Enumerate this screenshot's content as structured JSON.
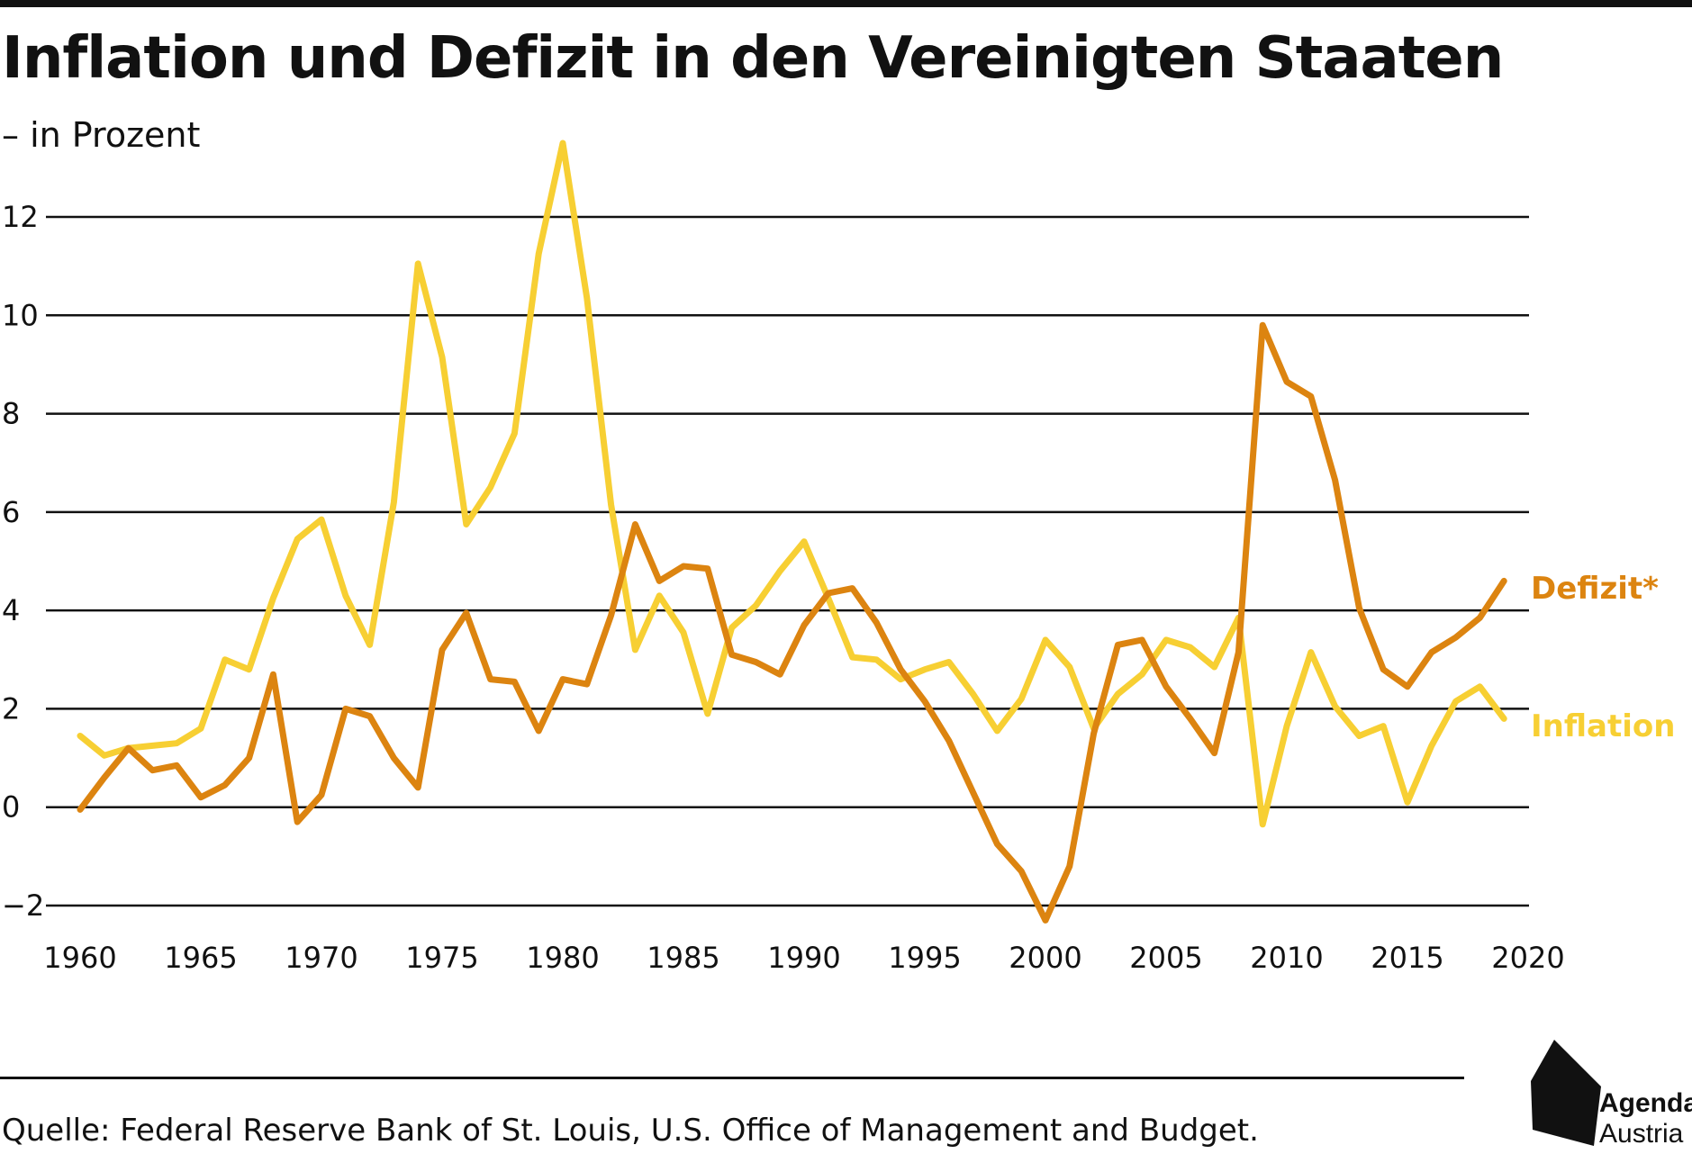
{
  "title": "Inflation und Defizit in den Vereinigten Staaten",
  "subtitle": "– in Prozent",
  "source": "Quelle: Federal Reserve Bank of St. Louis, U.S. Office of Management and Budget.",
  "logo": {
    "line1": "Agenda",
    "line2": "Austria"
  },
  "colors": {
    "inflation": "#f7cf33",
    "defizit": "#dc8410",
    "grid": "#111111",
    "text": "#111111"
  },
  "chart_data": {
    "type": "line",
    "title": "Inflation und Defizit in den Vereinigten Staaten",
    "ylabel": "in Prozent",
    "xlabel": "",
    "xlim": [
      1960,
      2020
    ],
    "ylim": [
      -2,
      12
    ],
    "x_ticks": [
      1960,
      1965,
      1970,
      1975,
      1980,
      1985,
      1990,
      1995,
      2000,
      2005,
      2010,
      2015,
      2020
    ],
    "x_tick_labels": [
      "1960",
      "1965",
      "1970",
      "1975",
      "1980",
      "1985",
      "1990",
      "1995",
      "2000",
      "2005",
      "2010",
      "2015",
      "2020"
    ],
    "y_ticks": [
      -2,
      0,
      2,
      4,
      6,
      8,
      10,
      12
    ],
    "y_tick_labels": [
      "−2",
      "0",
      "2",
      "4",
      "6",
      "8",
      "10",
      "12"
    ],
    "grid": "horizontal",
    "legend": "direct labels at right end of lines",
    "x": [
      1960,
      1961,
      1962,
      1963,
      1964,
      1965,
      1966,
      1967,
      1968,
      1969,
      1970,
      1971,
      1972,
      1973,
      1974,
      1975,
      1976,
      1977,
      1978,
      1979,
      1980,
      1981,
      1982,
      1983,
      1984,
      1985,
      1986,
      1987,
      1988,
      1989,
      1990,
      1991,
      1992,
      1993,
      1994,
      1995,
      1996,
      1997,
      1998,
      1999,
      2000,
      2001,
      2002,
      2003,
      2004,
      2005,
      2006,
      2007,
      2008,
      2009,
      2010,
      2011,
      2012,
      2013,
      2014,
      2015,
      2016,
      2017,
      2018,
      2019
    ],
    "series": [
      {
        "name": "Defizit*",
        "values": [
          -0.05,
          0.6,
          1.2,
          0.75,
          0.85,
          0.2,
          0.45,
          1.0,
          2.7,
          -0.3,
          0.25,
          2.0,
          1.85,
          1.0,
          0.4,
          3.2,
          3.95,
          2.6,
          2.55,
          1.55,
          2.6,
          2.5,
          3.9,
          5.75,
          4.6,
          4.9,
          4.85,
          3.1,
          2.95,
          2.7,
          3.7,
          4.35,
          4.45,
          3.75,
          2.8,
          2.15,
          1.35,
          0.3,
          -0.75,
          -1.3,
          -2.3,
          -1.2,
          1.5,
          3.3,
          3.4,
          2.45,
          1.8,
          1.1,
          3.15,
          9.8,
          8.65,
          8.35,
          6.65,
          4.05,
          2.8,
          2.45,
          3.15,
          3.45,
          3.85,
          4.6
        ]
      },
      {
        "name": "Inflation",
        "values": [
          1.45,
          1.05,
          1.2,
          1.25,
          1.3,
          1.6,
          3.0,
          2.8,
          4.25,
          5.45,
          5.85,
          4.3,
          3.3,
          6.2,
          11.05,
          9.15,
          5.75,
          6.5,
          7.6,
          11.25,
          13.5,
          10.35,
          6.15,
          3.2,
          4.3,
          3.55,
          1.9,
          3.65,
          4.1,
          4.8,
          5.4,
          4.25,
          3.05,
          3.0,
          2.6,
          2.8,
          2.95,
          2.3,
          1.55,
          2.2,
          3.4,
          2.85,
          1.6,
          2.3,
          2.7,
          3.4,
          3.25,
          2.85,
          3.85,
          -0.35,
          1.65,
          3.15,
          2.05,
          1.45,
          1.65,
          0.1,
          1.25,
          2.15,
          2.45,
          1.8
        ]
      }
    ]
  }
}
